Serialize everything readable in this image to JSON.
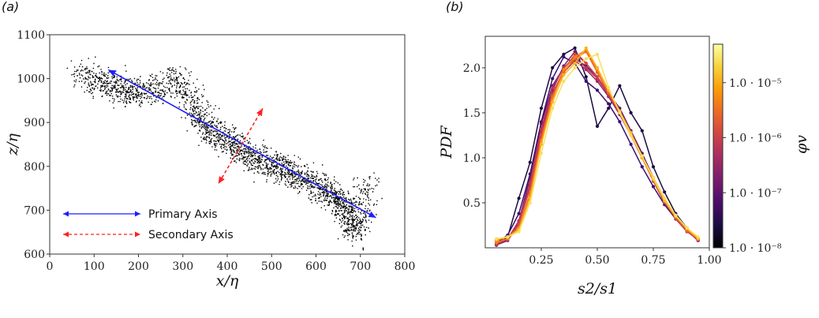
{
  "chart_data": [
    {
      "panel": "(a)",
      "type": "scatter",
      "xlabel": "x/η",
      "ylabel": "z/η",
      "xlim": [
        0,
        800
      ],
      "ylim": [
        600,
        1100
      ],
      "xticks": [
        "0",
        "100",
        "200",
        "300",
        "400",
        "500",
        "600",
        "700",
        "800"
      ],
      "yticks": [
        "600",
        "700",
        "800",
        "900",
        "1000",
        "1100"
      ],
      "point_color": "#000000",
      "cloud_spine": [
        [
          70,
          1010
        ],
        [
          130,
          990
        ],
        [
          170,
          970
        ],
        [
          230,
          975
        ],
        [
          290,
          1000
        ],
        [
          330,
          930
        ],
        [
          360,
          880
        ],
        [
          400,
          860
        ],
        [
          440,
          830
        ],
        [
          480,
          810
        ],
        [
          520,
          800
        ],
        [
          560,
          780
        ],
        [
          600,
          760
        ],
        [
          640,
          730
        ],
        [
          670,
          700
        ],
        [
          690,
          650
        ],
        [
          720,
          780
        ]
      ],
      "arrows": [
        {
          "name": "Primary Axis",
          "from": [
            132,
            1020
          ],
          "to": [
            735,
            683
          ],
          "color": "#1f1fff",
          "style": "solid"
        },
        {
          "name": "Secondary Axis",
          "from": [
            480,
            932
          ],
          "to": [
            380,
            760
          ],
          "color": "#ff2222",
          "style": "dashed"
        }
      ],
      "legend": [
        {
          "label": "Primary Axis",
          "color": "#1f1fff",
          "style": "solid"
        },
        {
          "label": "Secondary Axis",
          "color": "#ff2222",
          "style": "dashed"
        }
      ],
      "legend_placement": "lower-left"
    },
    {
      "panel": "(b)",
      "type": "line",
      "xlabel": "s2/s1",
      "ylabel": "PDF",
      "xlim": [
        0,
        1.0
      ],
      "ylim": [
        0,
        2.35
      ],
      "xticks": [
        "0.25",
        "0.50",
        "0.75",
        "1.00"
      ],
      "yticks": [
        "0.5",
        "1.0",
        "1.5",
        "2.0"
      ],
      "x": [
        0.05,
        0.1,
        0.15,
        0.2,
        0.25,
        0.3,
        0.35,
        0.4,
        0.45,
        0.5,
        0.55,
        0.6,
        0.65,
        0.7,
        0.75,
        0.8,
        0.85,
        0.9,
        0.95
      ],
      "series": [
        {
          "name": "phi_v=1e-8",
          "color": "#1a0b40",
          "values": [
            0.03,
            0.12,
            0.55,
            0.95,
            1.55,
            2.0,
            2.15,
            2.22,
            1.9,
            1.35,
            1.55,
            1.8,
            1.5,
            1.3,
            0.9,
            0.62,
            0.38,
            0.22,
            0.1
          ]
        },
        {
          "name": "phi_v=3e-8",
          "color": "#3b0f70",
          "values": [
            0.05,
            0.14,
            0.38,
            0.82,
            1.4,
            1.88,
            2.12,
            2.05,
            1.85,
            1.75,
            1.6,
            1.4,
            1.15,
            0.9,
            0.68,
            0.48,
            0.32,
            0.2,
            0.08
          ]
        },
        {
          "name": "phi_v=1e-7",
          "color": "#5c126e",
          "values": [
            0.04,
            0.09,
            0.3,
            0.78,
            1.38,
            1.8,
            2.0,
            2.1,
            2.02,
            1.9,
            1.72,
            1.55,
            1.3,
            1.05,
            0.78,
            0.55,
            0.35,
            0.2,
            0.08
          ]
        },
        {
          "name": "phi_v=3e-7",
          "color": "#7d1d6c",
          "values": [
            0.06,
            0.1,
            0.28,
            0.7,
            1.3,
            1.75,
            2.02,
            2.18,
            2.05,
            1.9,
            1.7,
            1.5,
            1.28,
            1.02,
            0.75,
            0.52,
            0.34,
            0.18,
            0.09
          ]
        },
        {
          "name": "phi_v=1e-6",
          "color": "#9c2964",
          "values": [
            0.03,
            0.08,
            0.26,
            0.7,
            1.28,
            1.72,
            1.95,
            2.08,
            1.98,
            1.85,
            1.68,
            1.48,
            1.25,
            1.0,
            0.75,
            0.52,
            0.32,
            0.18,
            0.1
          ]
        },
        {
          "name": "phi_v=3e-6",
          "color": "#ba3655",
          "values": [
            0.04,
            0.1,
            0.3,
            0.72,
            1.32,
            1.78,
            2.0,
            2.12,
            2.0,
            1.88,
            1.7,
            1.5,
            1.26,
            1.0,
            0.74,
            0.5,
            0.33,
            0.19,
            0.08
          ]
        },
        {
          "name": "phi_v=1e-5",
          "color": "#d44842",
          "values": [
            0.05,
            0.1,
            0.26,
            0.66,
            1.25,
            1.7,
            1.98,
            2.15,
            2.05,
            1.9,
            1.72,
            1.5,
            1.26,
            1.02,
            0.76,
            0.52,
            0.33,
            0.18,
            0.1
          ]
        },
        {
          "name": "phi_v=2e-5",
          "color": "#ea632a",
          "values": [
            0.08,
            0.12,
            0.22,
            0.6,
            1.2,
            1.68,
            1.95,
            2.1,
            2.18,
            1.95,
            1.72,
            1.5,
            1.25,
            1.0,
            0.75,
            0.52,
            0.34,
            0.2,
            0.1
          ]
        },
        {
          "name": "phi_v=3e-5",
          "color": "#f78212",
          "values": [
            0.06,
            0.1,
            0.22,
            0.58,
            1.18,
            1.65,
            1.98,
            2.12,
            2.2,
            1.98,
            1.75,
            1.52,
            1.28,
            1.02,
            0.76,
            0.54,
            0.36,
            0.2,
            0.1
          ]
        },
        {
          "name": "phi_v=5e-5",
          "color": "#fcb31a",
          "values": [
            0.09,
            0.12,
            0.2,
            0.55,
            1.15,
            1.62,
            1.92,
            2.05,
            2.22,
            2.0,
            1.75,
            1.52,
            1.28,
            1.0,
            0.76,
            0.52,
            0.35,
            0.22,
            0.1
          ]
        },
        {
          "name": "phi_v=7e-5",
          "color": "#f6e15b",
          "values": [
            0.1,
            0.12,
            0.18,
            0.5,
            1.05,
            1.55,
            1.85,
            2.0,
            2.1,
            2.15,
            1.78,
            1.5,
            1.25,
            1.02,
            0.78,
            0.55,
            0.36,
            0.22,
            0.12
          ]
        }
      ],
      "colorbar": {
        "label": "φv",
        "colormap": "inferno",
        "scale": "log",
        "range": [
          1e-08,
          5e-05
        ],
        "ticks": [
          "1.0 · 10⁻⁸",
          "1.0 · 10⁻⁷",
          "1.0 · 10⁻⁶",
          "1.0 · 10⁻⁵"
        ],
        "stops": [
          "#000004",
          "#1b0c41",
          "#4a0c6b",
          "#781c6d",
          "#a52c60",
          "#cf4446",
          "#ed6925",
          "#fb9b06",
          "#f7d13d",
          "#fcffa4"
        ]
      }
    }
  ]
}
